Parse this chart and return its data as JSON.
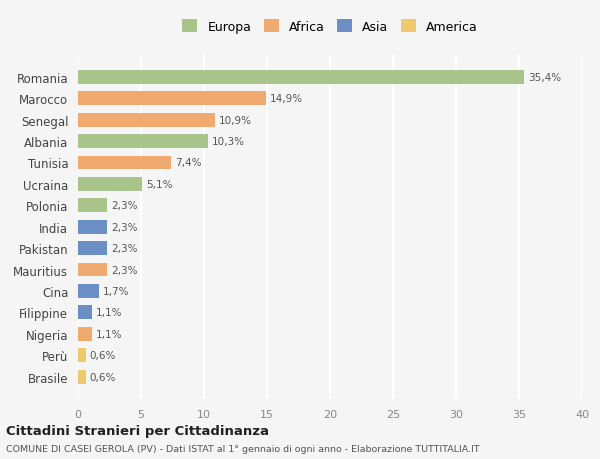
{
  "categories": [
    "Brasile",
    "Perù",
    "Nigeria",
    "Filippine",
    "Cina",
    "Mauritius",
    "Pakistan",
    "India",
    "Polonia",
    "Ucraina",
    "Tunisia",
    "Albania",
    "Senegal",
    "Marocco",
    "Romania"
  ],
  "values": [
    0.6,
    0.6,
    1.1,
    1.1,
    1.7,
    2.3,
    2.3,
    2.3,
    2.3,
    5.1,
    7.4,
    10.3,
    10.9,
    14.9,
    35.4
  ],
  "colors": [
    "#f0c96e",
    "#f0c96e",
    "#f0a96e",
    "#6b8fc4",
    "#6b8fc4",
    "#f0a96e",
    "#6b8fc4",
    "#6b8fc4",
    "#a8c48a",
    "#a8c48a",
    "#f0a96e",
    "#a8c48a",
    "#f0a96e",
    "#f0a96e",
    "#a8c48a"
  ],
  "labels": [
    "0,6%",
    "0,6%",
    "1,1%",
    "1,1%",
    "1,7%",
    "2,3%",
    "2,3%",
    "2,3%",
    "2,3%",
    "5,1%",
    "7,4%",
    "10,3%",
    "10,9%",
    "14,9%",
    "35,4%"
  ],
  "legend": {
    "Europa": "#a8c48a",
    "Africa": "#f0a96e",
    "Asia": "#6b8fc4",
    "America": "#f0c96e"
  },
  "xlim": [
    0,
    40
  ],
  "xticks": [
    0,
    5,
    10,
    15,
    20,
    25,
    30,
    35,
    40
  ],
  "title": "Cittadini Stranieri per Cittadinanza",
  "subtitle": "COMUNE DI CASEI GEROLA (PV) - Dati ISTAT al 1° gennaio di ogni anno - Elaborazione TUTTITALIA.IT",
  "bg_color": "#f5f5f5",
  "grid_color": "#ffffff",
  "bar_height": 0.65
}
